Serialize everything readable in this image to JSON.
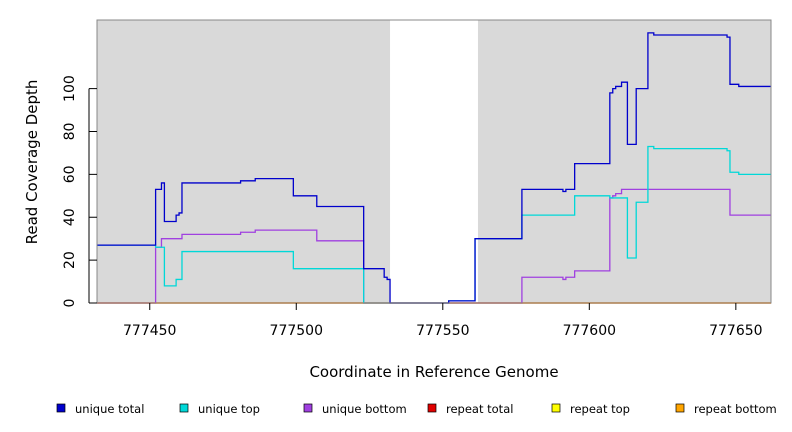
{
  "chart_data": {
    "type": "line",
    "xlabel": "Coordinate in Reference Genome",
    "ylabel": "Read Coverage Depth",
    "xlim": [
      777432,
      777662
    ],
    "ylim": [
      0,
      132
    ],
    "x_ticks": [
      777450,
      777500,
      777550,
      777600,
      777650
    ],
    "y_ticks": [
      0,
      20,
      40,
      60,
      80,
      100
    ],
    "plot_background": "#d9d9d9",
    "highlight_region": {
      "x": [
        777532,
        777562
      ],
      "color": "#ffffff"
    },
    "legend_position": "bottom",
    "series": [
      {
        "name": "unique total",
        "color": "#0000cc",
        "points": [
          [
            777432,
            27
          ],
          [
            777452,
            27
          ],
          [
            777452,
            53
          ],
          [
            777454,
            53
          ],
          [
            777454,
            56
          ],
          [
            777455,
            56
          ],
          [
            777455,
            38
          ],
          [
            777459,
            38
          ],
          [
            777459,
            41
          ],
          [
            777460,
            41
          ],
          [
            777460,
            42
          ],
          [
            777461,
            42
          ],
          [
            777461,
            56
          ],
          [
            777481,
            56
          ],
          [
            777481,
            57
          ],
          [
            777486,
            57
          ],
          [
            777486,
            58
          ],
          [
            777499,
            58
          ],
          [
            777499,
            50
          ],
          [
            777507,
            50
          ],
          [
            777507,
            45
          ],
          [
            777523,
            45
          ],
          [
            777523,
            16
          ],
          [
            777530,
            16
          ],
          [
            777530,
            12
          ],
          [
            777531,
            12
          ],
          [
            777531,
            11
          ],
          [
            777532,
            11
          ],
          [
            777532,
            0
          ],
          [
            777552,
            0
          ],
          [
            777552,
            1
          ],
          [
            777561,
            1
          ],
          [
            777561,
            30
          ],
          [
            777577,
            30
          ],
          [
            777577,
            53
          ],
          [
            777591,
            53
          ],
          [
            777591,
            52
          ],
          [
            777592,
            52
          ],
          [
            777592,
            53
          ],
          [
            777595,
            53
          ],
          [
            777595,
            65
          ],
          [
            777607,
            65
          ],
          [
            777607,
            98
          ],
          [
            777608,
            98
          ],
          [
            777608,
            100
          ],
          [
            777609,
            100
          ],
          [
            777609,
            101
          ],
          [
            777611,
            101
          ],
          [
            777611,
            103
          ],
          [
            777613,
            103
          ],
          [
            777613,
            74
          ],
          [
            777616,
            74
          ],
          [
            777616,
            100
          ],
          [
            777620,
            100
          ],
          [
            777620,
            126
          ],
          [
            777622,
            126
          ],
          [
            777622,
            125
          ],
          [
            777647,
            125
          ],
          [
            777647,
            124
          ],
          [
            777648,
            124
          ],
          [
            777648,
            102
          ],
          [
            777651,
            102
          ],
          [
            777651,
            101
          ],
          [
            777662,
            101
          ]
        ]
      },
      {
        "name": "unique top",
        "color": "#00d8d8",
        "points": [
          [
            777432,
            27
          ],
          [
            777452,
            27
          ],
          [
            777452,
            26
          ],
          [
            777455,
            26
          ],
          [
            777455,
            8
          ],
          [
            777459,
            8
          ],
          [
            777459,
            11
          ],
          [
            777461,
            11
          ],
          [
            777461,
            24
          ],
          [
            777499,
            24
          ],
          [
            777499,
            16
          ],
          [
            777523,
            16
          ],
          [
            777523,
            0
          ],
          [
            777552,
            0
          ],
          [
            777552,
            1
          ],
          [
            777561,
            1
          ],
          [
            777561,
            30
          ],
          [
            777577,
            30
          ],
          [
            777577,
            41
          ],
          [
            777595,
            41
          ],
          [
            777595,
            50
          ],
          [
            777607,
            50
          ],
          [
            777607,
            49
          ],
          [
            777613,
            49
          ],
          [
            777613,
            21
          ],
          [
            777616,
            21
          ],
          [
            777616,
            47
          ],
          [
            777620,
            47
          ],
          [
            777620,
            73
          ],
          [
            777622,
            73
          ],
          [
            777622,
            72
          ],
          [
            777647,
            72
          ],
          [
            777647,
            71
          ],
          [
            777648,
            71
          ],
          [
            777648,
            61
          ],
          [
            777651,
            61
          ],
          [
            777651,
            60
          ],
          [
            777662,
            60
          ]
        ]
      },
      {
        "name": "unique bottom",
        "color": "#a040e0",
        "points": [
          [
            777432,
            0
          ],
          [
            777452,
            0
          ],
          [
            777452,
            26
          ],
          [
            777454,
            26
          ],
          [
            777454,
            30
          ],
          [
            777461,
            30
          ],
          [
            777461,
            32
          ],
          [
            777481,
            32
          ],
          [
            777481,
            33
          ],
          [
            777486,
            33
          ],
          [
            777486,
            34
          ],
          [
            777507,
            34
          ],
          [
            777507,
            29
          ],
          [
            777523,
            29
          ],
          [
            777523,
            0
          ],
          [
            777577,
            0
          ],
          [
            777577,
            12
          ],
          [
            777591,
            12
          ],
          [
            777591,
            11
          ],
          [
            777592,
            11
          ],
          [
            777592,
            12
          ],
          [
            777595,
            12
          ],
          [
            777595,
            15
          ],
          [
            777607,
            15
          ],
          [
            777607,
            49
          ],
          [
            777608,
            49
          ],
          [
            777608,
            50
          ],
          [
            777609,
            50
          ],
          [
            777609,
            51
          ],
          [
            777611,
            51
          ],
          [
            777611,
            53
          ],
          [
            777648,
            53
          ],
          [
            777648,
            41
          ],
          [
            777662,
            41
          ]
        ]
      },
      {
        "name": "repeat total",
        "color": "#e00000",
        "points": [
          [
            777432,
            0
          ],
          [
            777662,
            0
          ]
        ]
      },
      {
        "name": "repeat top",
        "color": "#ffff00",
        "points": [
          [
            777432,
            0
          ],
          [
            777662,
            0
          ]
        ]
      },
      {
        "name": "repeat bottom",
        "color": "#ffa500",
        "points": [
          [
            777432,
            0
          ],
          [
            777662,
            0
          ]
        ]
      }
    ]
  }
}
